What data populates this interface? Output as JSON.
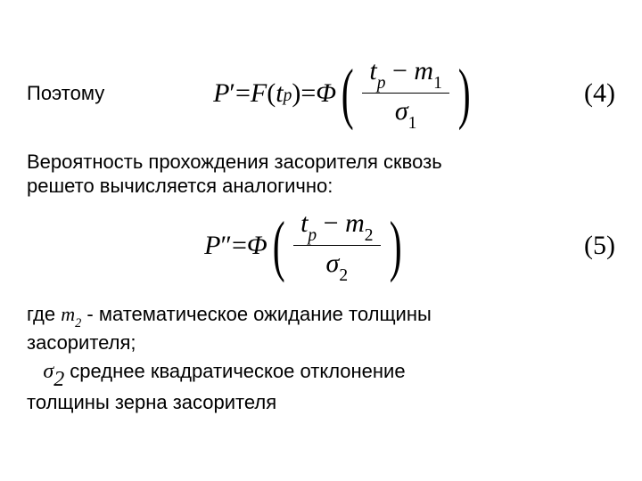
{
  "colors": {
    "text": "#000000",
    "background": "#ffffff"
  },
  "typography": {
    "body_font": "Arial",
    "body_size_pt": 22,
    "math_font": "Times New Roman",
    "math_size_pt": 30,
    "math_style": "italic"
  },
  "line1_word": "Поэтому",
  "eq4": {
    "lhs_P": "P",
    "lhs_prime": "′",
    "eq_sign": " = ",
    "F": "F",
    "open": "(",
    "t": "t",
    "sub_p": "p",
    "close": ")",
    "Phi": "Φ",
    "frac_num_t": "t",
    "frac_num_sub": "p",
    "frac_num_minus": " − ",
    "frac_num_m": "m",
    "frac_num_msub": "1",
    "frac_den_sigma": "σ",
    "frac_den_sub": "1",
    "number_open": "(",
    "number": "4",
    "number_close": ")"
  },
  "para2_l1": "Вероятность прохождения засорителя сквозь",
  "para2_l2": "решето вычисляется аналогично:",
  "eq5": {
    "lhs_P": "P",
    "lhs_prime": "″",
    "eq_sign": " = ",
    "Phi": "Φ",
    "frac_num_t": "t",
    "frac_num_sub": "p",
    "frac_num_minus": " − ",
    "frac_num_m": "m",
    "frac_num_msub": "2",
    "frac_den_sigma": "σ",
    "frac_den_sub": "2",
    "number_open": "(",
    "number": "5",
    "number_close": ")"
  },
  "para3_pre": "где ",
  "para3_m": "m",
  "para3_msub": "2",
  "para3_post": " - математическое ожидание толщины",
  "para3_l2": "засорителя;",
  "para4_indent": "   ",
  "para4_sigma": "σ",
  "para4_sigma_sub": "2",
  "para4_post": " среднее  квадратическое отклонение",
  "para4_l2": "толщины зерна засорителя"
}
